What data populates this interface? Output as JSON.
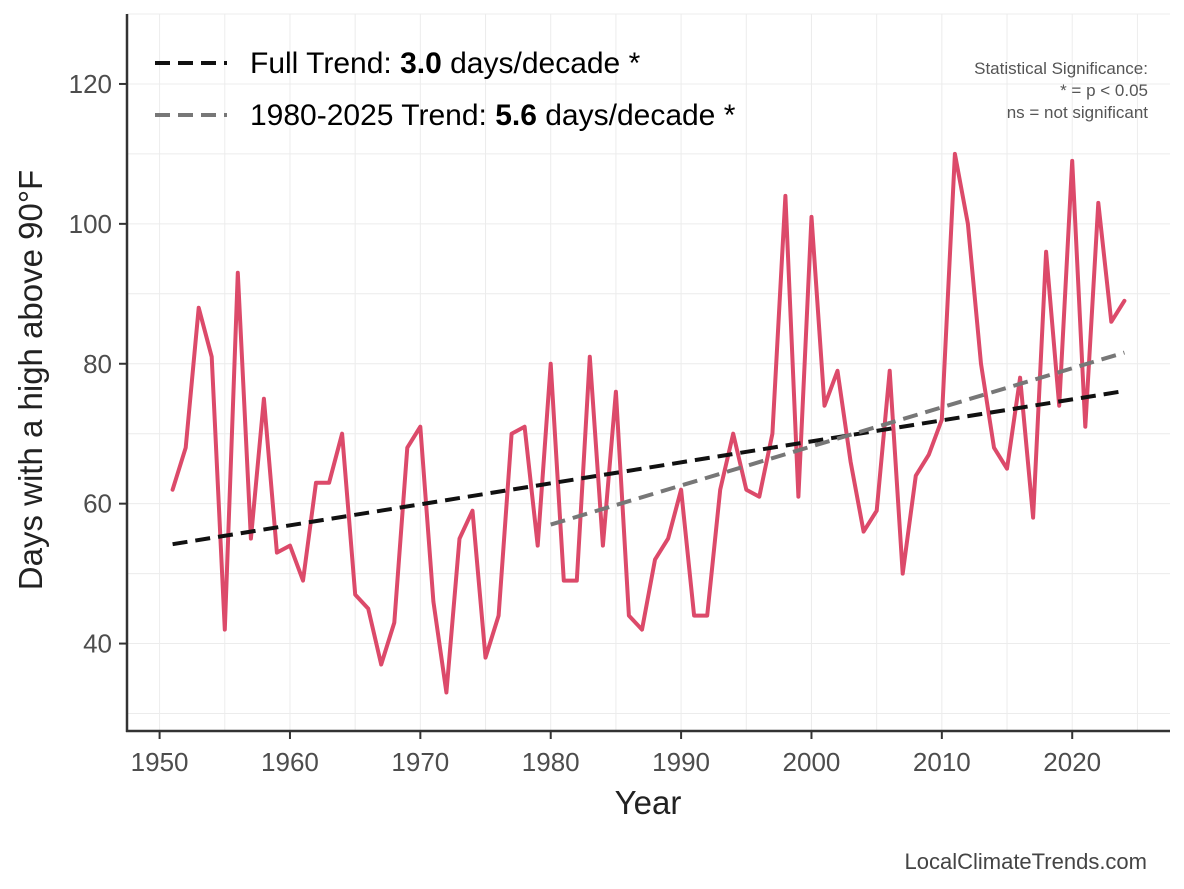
{
  "chart_data": {
    "type": "line",
    "xlabel": "Year",
    "ylabel": "Days with a high above 90°F",
    "xlim": [
      1947.5,
      2027.5
    ],
    "ylim": [
      27.5,
      130
    ],
    "xticks": [
      1950,
      1960,
      1970,
      1980,
      1990,
      2000,
      2010,
      2020
    ],
    "yticks": [
      40,
      60,
      80,
      100,
      120
    ],
    "grid": true,
    "legend_position": "top-left",
    "series": [
      {
        "name": "Days with a high above 90°F",
        "color": "#dc4a6a",
        "x": [
          1951,
          1952,
          1953,
          1954,
          1955,
          1956,
          1957,
          1958,
          1959,
          1960,
          1961,
          1962,
          1963,
          1964,
          1965,
          1966,
          1967,
          1968,
          1969,
          1970,
          1971,
          1972,
          1973,
          1974,
          1975,
          1976,
          1977,
          1978,
          1979,
          1980,
          1981,
          1982,
          1983,
          1984,
          1985,
          1986,
          1987,
          1988,
          1989,
          1990,
          1991,
          1992,
          1993,
          1994,
          1995,
          1996,
          1997,
          1998,
          1999,
          2000,
          2001,
          2002,
          2003,
          2004,
          2005,
          2006,
          2007,
          2008,
          2009,
          2010,
          2011,
          2012,
          2013,
          2014,
          2015,
          2016,
          2017,
          2018,
          2019,
          2020,
          2021,
          2022,
          2023,
          2024
        ],
        "values": [
          62,
          68,
          88,
          81,
          42,
          93,
          55,
          75,
          53,
          54,
          49,
          63,
          63,
          70,
          47,
          45,
          37,
          43,
          68,
          71,
          46,
          33,
          55,
          59,
          38,
          44,
          70,
          71,
          54,
          80,
          49,
          49,
          81,
          54,
          76,
          44,
          42,
          52,
          55,
          62,
          44,
          44,
          62,
          70,
          62,
          61,
          70,
          104,
          61,
          101,
          74,
          79,
          66,
          56,
          59,
          79,
          50,
          64,
          67,
          72,
          110,
          100,
          80,
          68,
          65,
          78,
          58,
          96,
          74,
          109,
          71,
          103,
          86,
          89
        ]
      },
      {
        "name": "Full Trend",
        "color": "#111111",
        "dash": true,
        "x": [
          1951,
          2024
        ],
        "values": [
          54.2,
          76.1
        ]
      },
      {
        "name": "1980-2025 Trend",
        "color": "#777777",
        "dash": true,
        "x": [
          1980,
          2024
        ],
        "values": [
          57.0,
          81.6
        ]
      }
    ],
    "legend": [
      {
        "prefix": "Full Trend: ",
        "value": "3.0",
        "suffix": " days/decade *",
        "color": "#111111"
      },
      {
        "prefix": "1980-2025 Trend: ",
        "value": "5.6",
        "suffix": " days/decade *",
        "color": "#777777"
      }
    ],
    "annotation": [
      "Statistical Significance:",
      "* = p < 0.05",
      "ns = not significant"
    ],
    "credit": "LocalClimateTrends.com"
  }
}
